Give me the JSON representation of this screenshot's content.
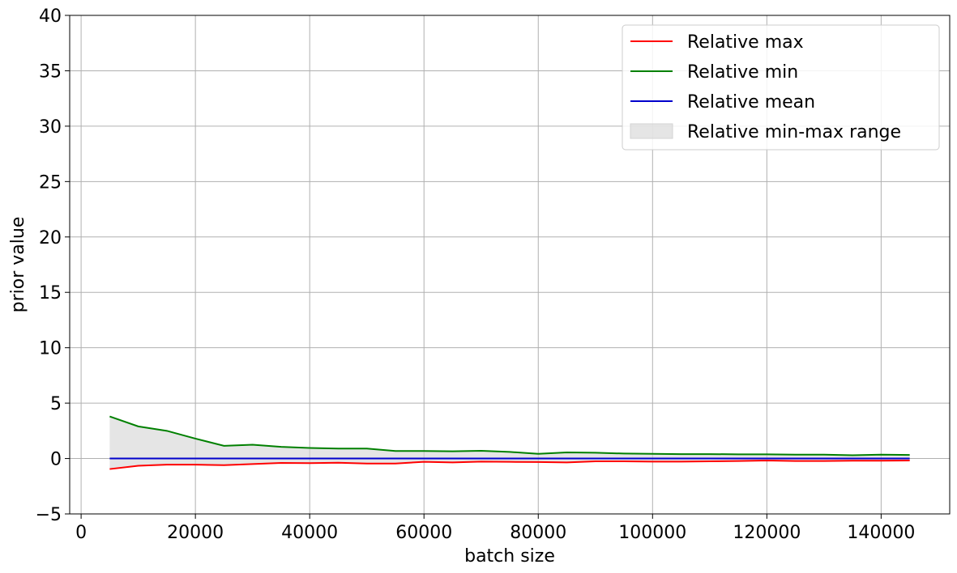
{
  "chart_data": {
    "type": "line",
    "title": "",
    "xlabel": "batch size",
    "ylabel": "prior value",
    "xlim": [
      -2000,
      152000
    ],
    "ylim": [
      -5,
      40
    ],
    "xticks": [
      0,
      20000,
      40000,
      60000,
      80000,
      100000,
      120000,
      140000
    ],
    "yticks": [
      -5,
      0,
      5,
      10,
      15,
      20,
      25,
      30,
      35,
      40
    ],
    "xtick_labels": [
      "0",
      "20000",
      "40000",
      "60000",
      "80000",
      "100000",
      "120000",
      "140000"
    ],
    "ytick_labels": [
      "−5",
      "0",
      "5",
      "10",
      "15",
      "20",
      "25",
      "30",
      "35",
      "40"
    ],
    "grid": true,
    "legend_position": "top-right",
    "x": [
      5000,
      10000,
      15000,
      20000,
      25000,
      30000,
      35000,
      40000,
      45000,
      50000,
      55000,
      60000,
      65000,
      70000,
      75000,
      80000,
      85000,
      90000,
      95000,
      100000,
      105000,
      110000,
      115000,
      120000,
      125000,
      130000,
      135000,
      140000,
      145000
    ],
    "series": [
      {
        "name": "Relative max",
        "color": "#ff0000",
        "values": [
          -0.95,
          -0.65,
          -0.55,
          -0.55,
          -0.6,
          -0.5,
          -0.4,
          -0.42,
          -0.38,
          -0.45,
          -0.45,
          -0.3,
          -0.35,
          -0.28,
          -0.3,
          -0.32,
          -0.35,
          -0.25,
          -0.25,
          -0.28,
          -0.28,
          -0.25,
          -0.22,
          -0.18,
          -0.22,
          -0.22,
          -0.2,
          -0.2,
          -0.18
        ]
      },
      {
        "name": "Relative min",
        "color": "#008000",
        "values": [
          3.8,
          2.9,
          2.5,
          1.8,
          1.15,
          1.25,
          1.05,
          0.95,
          0.9,
          0.9,
          0.68,
          0.68,
          0.65,
          0.7,
          0.6,
          0.42,
          0.55,
          0.52,
          0.45,
          0.42,
          0.4,
          0.4,
          0.38,
          0.38,
          0.35,
          0.35,
          0.3,
          0.35,
          0.32
        ]
      },
      {
        "name": "Relative mean",
        "color": "#0000cc",
        "values": [
          0.0,
          0.0,
          0.0,
          0.0,
          0.0,
          0.0,
          0.0,
          0.0,
          0.0,
          0.0,
          0.0,
          0.0,
          0.0,
          0.0,
          0.0,
          0.0,
          0.0,
          0.0,
          0.0,
          0.0,
          0.0,
          0.0,
          0.0,
          0.0,
          0.0,
          0.0,
          0.0,
          0.0,
          0.0
        ]
      }
    ],
    "fill": {
      "name": "Relative min-max range",
      "color": "#d3d3d3",
      "between": [
        "Relative max",
        "Relative min"
      ]
    }
  }
}
